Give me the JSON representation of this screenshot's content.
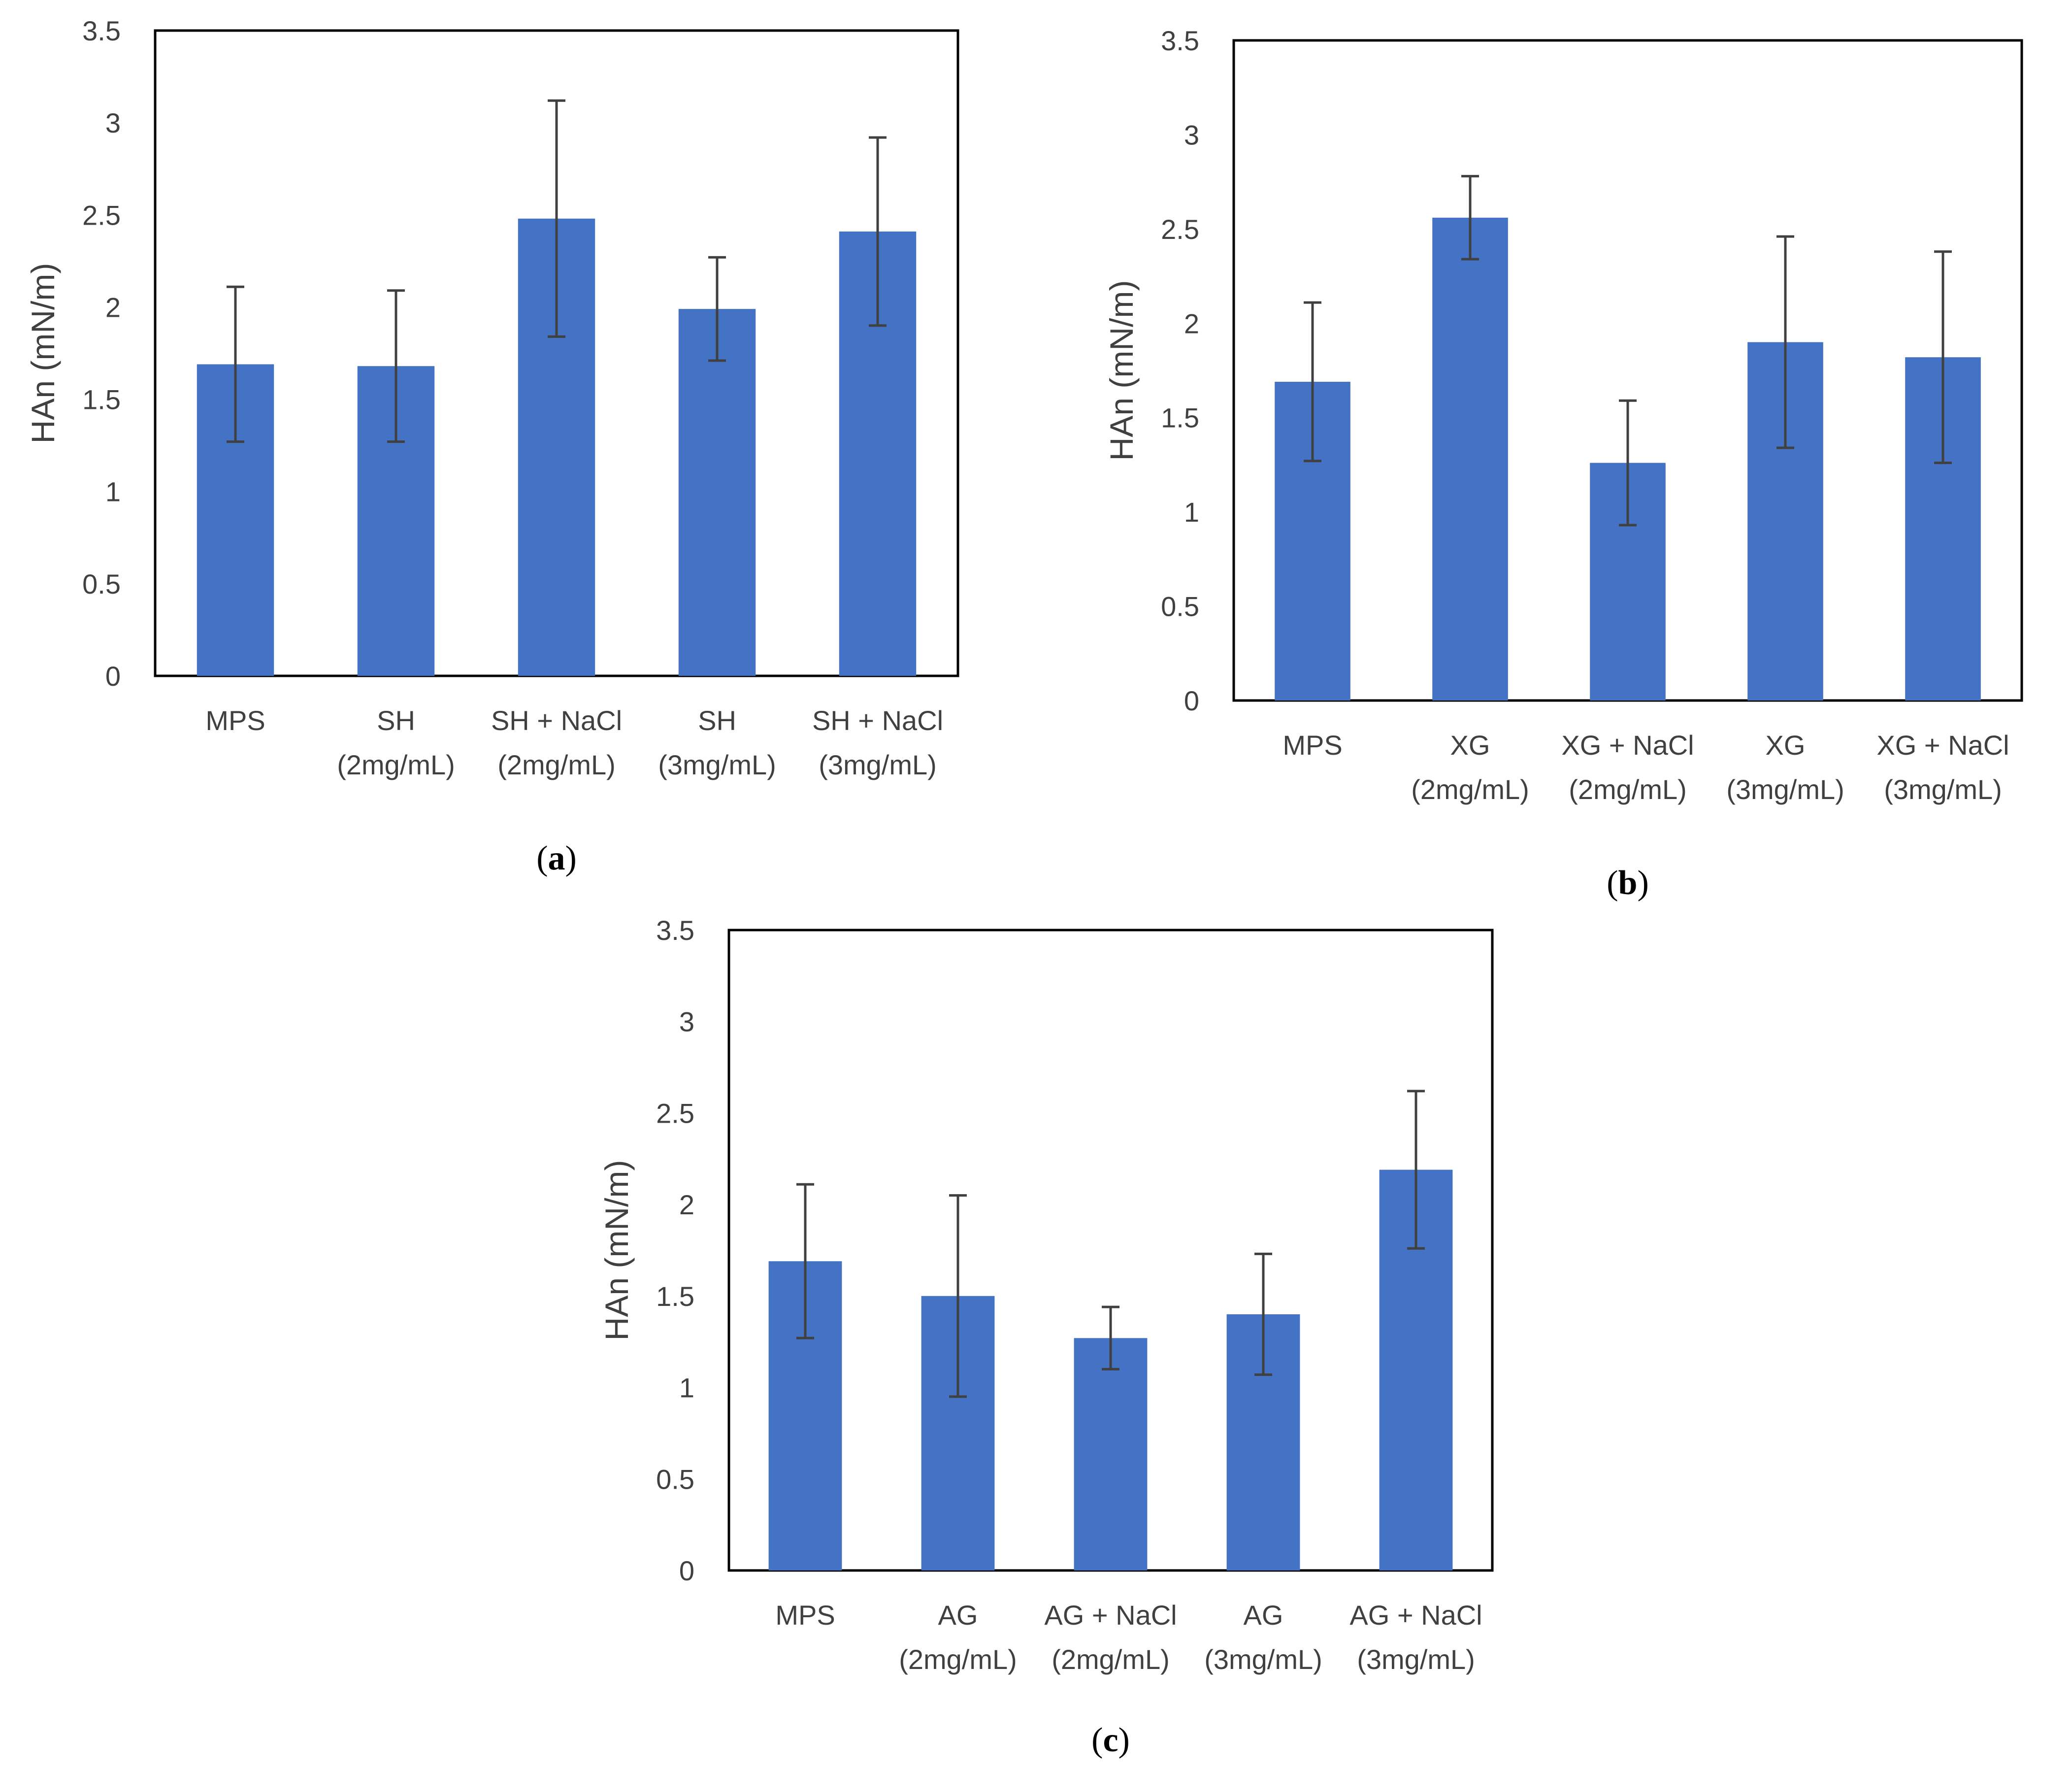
{
  "chart_data": [
    {
      "type": "bar",
      "caption_letter": "a",
      "ylabel": "HAn (mN/m)",
      "ylim": [
        0,
        3.5
      ],
      "yticks": [
        "0",
        "0.5",
        "1",
        "1.5",
        "2",
        "2.5",
        "3",
        "3.5"
      ],
      "categories": [
        [
          "MPS"
        ],
        [
          "SH",
          "(2mg/mL)"
        ],
        [
          "SH + NaCl",
          "(2mg/mL)"
        ],
        [
          "SH",
          "(3mg/mL)"
        ],
        [
          "SH + NaCl",
          "(3mg/mL)"
        ]
      ],
      "values": [
        1.69,
        1.68,
        2.48,
        1.99,
        2.41
      ],
      "error": [
        0.42,
        0.41,
        0.64,
        0.28,
        0.51
      ],
      "bar_color": "#4472C4",
      "error_color": "#404040",
      "grid": false
    },
    {
      "type": "bar",
      "caption_letter": "b",
      "ylabel": "HAn (mN/m)",
      "ylim": [
        0,
        3.5
      ],
      "yticks": [
        "0",
        "0.5",
        "1",
        "1.5",
        "2",
        "2.5",
        "3",
        "3.5"
      ],
      "categories": [
        [
          "MPS"
        ],
        [
          "XG",
          "(2mg/mL)"
        ],
        [
          "XG + NaCl",
          "(2mg/mL)"
        ],
        [
          "XG",
          "(3mg/mL)"
        ],
        [
          "XG + NaCl",
          "(3mg/mL)"
        ]
      ],
      "values": [
        1.69,
        2.56,
        1.26,
        1.9,
        1.82
      ],
      "error": [
        0.42,
        0.22,
        0.33,
        0.56,
        0.56
      ],
      "bar_color": "#4472C4",
      "error_color": "#404040",
      "grid": false
    },
    {
      "type": "bar",
      "caption_letter": "c",
      "ylabel": "HAn (mN/m)",
      "ylim": [
        0,
        3.5
      ],
      "yticks": [
        "0",
        "0.5",
        "1",
        "1.5",
        "2",
        "2.5",
        "3",
        "3.5"
      ],
      "categories": [
        [
          "MPS"
        ],
        [
          "AG",
          "(2mg/mL)"
        ],
        [
          "AG + NaCl",
          "(2mg/mL)"
        ],
        [
          "AG",
          "(3mg/mL)"
        ],
        [
          "AG + NaCl",
          "(3mg/mL)"
        ]
      ],
      "values": [
        1.69,
        1.5,
        1.27,
        1.4,
        2.19
      ],
      "error": [
        0.42,
        0.55,
        0.17,
        0.33,
        0.43
      ],
      "bar_color": "#4472C4",
      "error_color": "#404040",
      "grid": false
    }
  ]
}
